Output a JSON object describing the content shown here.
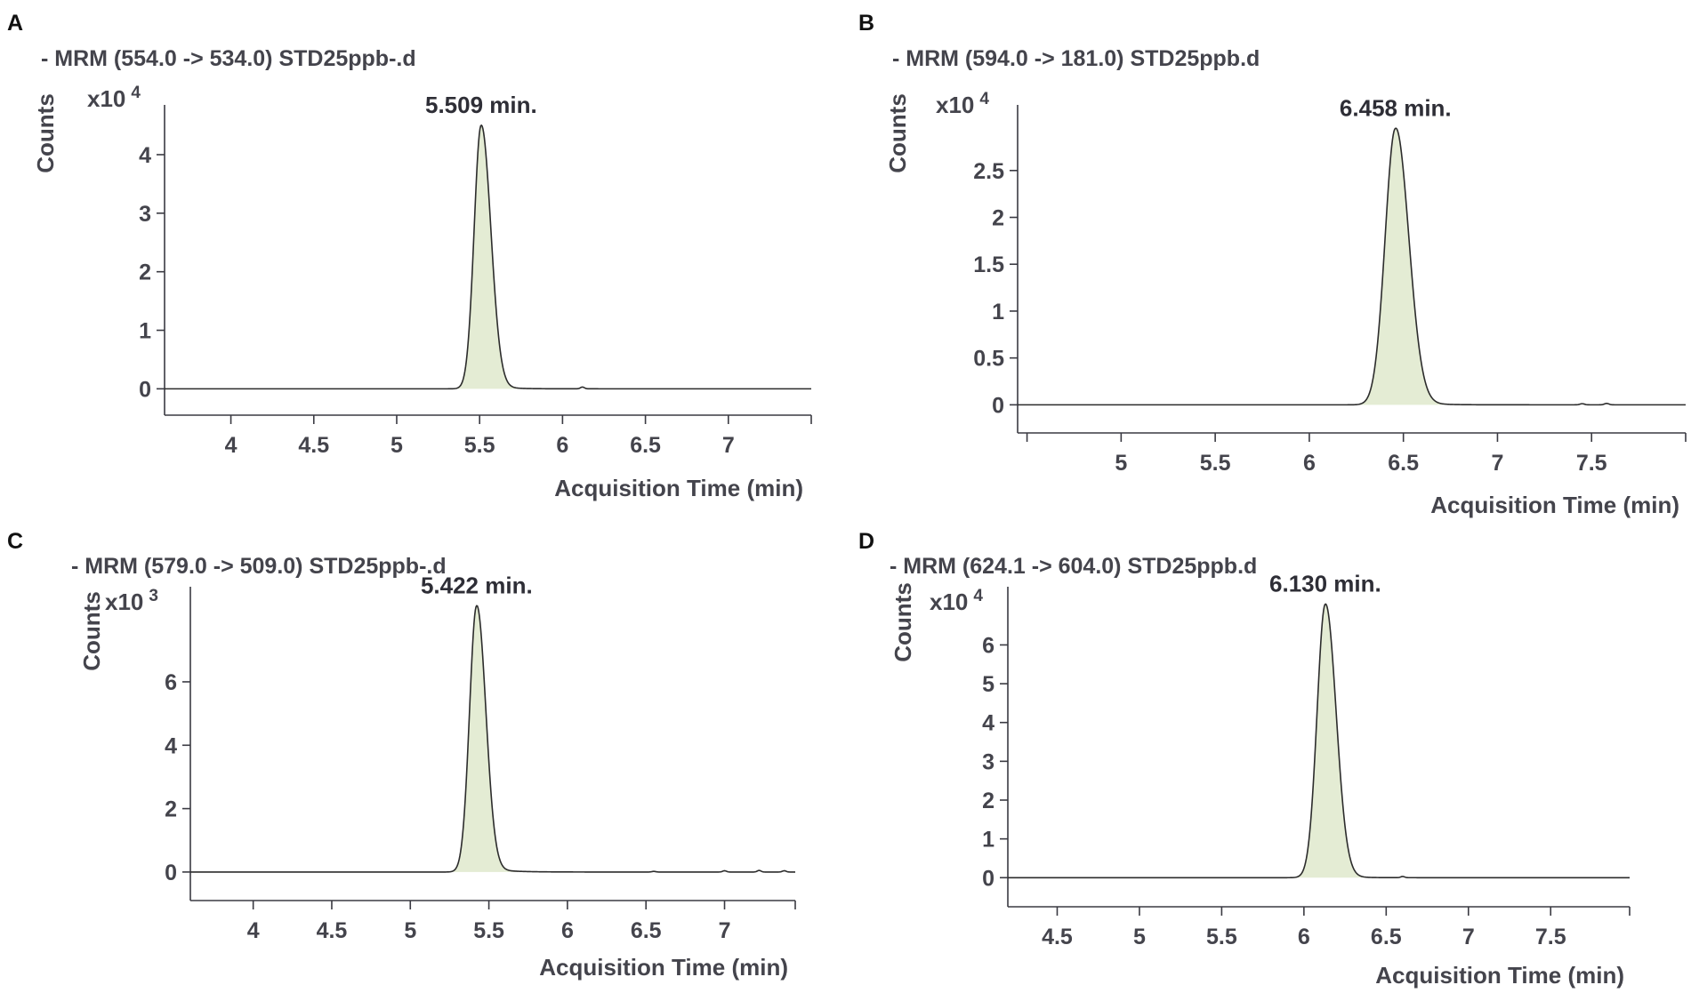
{
  "chart_data": [
    {
      "type": "line",
      "panel_label": "A",
      "title": "- MRM (554.0 -> 534.0) STD25ppb-.d",
      "xlabel": "Acquisition Time (min)",
      "ylabel": "Counts",
      "y_exponent_label": "x10",
      "y_exponent_power": "4",
      "peak_label": "5.509 min.",
      "peak_time": 5.509,
      "peak_height": 4.5,
      "sigma_left": 0.042,
      "sigma_right": 0.058,
      "tail": 0.09,
      "xlim": [
        3.6,
        7.5
      ],
      "ylim": [
        -0.45,
        4.85
      ],
      "x_ticks": [
        4,
        4.5,
        5,
        5.5,
        6,
        6.5,
        7
      ],
      "x_tick_labels": [
        "4",
        "4.5",
        "5",
        "5.5",
        "6",
        "6.5",
        "7"
      ],
      "y_ticks": [
        0,
        1,
        2,
        3,
        4
      ],
      "y_tick_labels": [
        "0",
        "1",
        "2",
        "3",
        "4"
      ],
      "bumps": [
        [
          6.12,
          0.03
        ]
      ]
    },
    {
      "type": "line",
      "panel_label": "B",
      "title": "- MRM (594.0 -> 181.0) STD25ppb.d",
      "xlabel": "Acquisition Time (min)",
      "ylabel": "Counts",
      "y_exponent_label": "x10",
      "y_exponent_power": "4",
      "peak_label": "6.458 min.",
      "peak_time": 6.458,
      "peak_height": 2.95,
      "sigma_left": 0.055,
      "sigma_right": 0.07,
      "tail": 0.1,
      "xlim": [
        4.45,
        8.0
      ],
      "ylim": [
        -0.3,
        3.2
      ],
      "x_ticks": [
        4.5,
        5,
        5.5,
        6,
        6.5,
        7,
        7.5
      ],
      "x_tick_labels": [
        "",
        "5",
        "5.5",
        "6",
        "6.5",
        "7",
        "7.5"
      ],
      "y_ticks": [
        0,
        0.5,
        1,
        1.5,
        2,
        2.5
      ],
      "y_tick_labels": [
        "0",
        "0.5",
        "1",
        "1.5",
        "2",
        "2.5"
      ],
      "bumps": [
        [
          7.45,
          0.012
        ],
        [
          7.58,
          0.015
        ]
      ]
    },
    {
      "type": "line",
      "panel_label": "C",
      "title": "- MRM (579.0 -> 509.0) STD25ppb-.d",
      "xlabel": "Acquisition Time (min)",
      "ylabel": "Counts",
      "y_exponent_label": "x10",
      "y_exponent_power": "3",
      "peak_label": "5.422 min.",
      "peak_time": 5.422,
      "peak_height": 8.4,
      "sigma_left": 0.045,
      "sigma_right": 0.058,
      "tail": 0.12,
      "xlim": [
        3.6,
        7.45
      ],
      "ylim": [
        -0.9,
        9.0
      ],
      "x_ticks": [
        4,
        4.5,
        5,
        5.5,
        6,
        6.5,
        7
      ],
      "x_tick_labels": [
        "4",
        "4.5",
        "5",
        "5.5",
        "6",
        "6.5",
        "7"
      ],
      "y_ticks": [
        0,
        2,
        4,
        6
      ],
      "y_tick_labels": [
        "0",
        "2",
        "4",
        "6"
      ],
      "bumps": [
        [
          6.55,
          0.02
        ],
        [
          7.0,
          0.04
        ],
        [
          7.22,
          0.05
        ],
        [
          7.38,
          0.04
        ]
      ]
    },
    {
      "type": "line",
      "panel_label": "D",
      "title": "- MRM (624.1 -> 604.0) STD25ppb.d",
      "xlabel": "Acquisition Time (min)",
      "ylabel": "Counts",
      "y_exponent_label": "x10",
      "y_exponent_power": "4",
      "peak_label": "6.130 min.",
      "peak_time": 6.13,
      "peak_height": 7.05,
      "sigma_left": 0.05,
      "sigma_right": 0.065,
      "tail": 0.08,
      "xlim": [
        4.2,
        7.98
      ],
      "ylim": [
        -0.75,
        7.5
      ],
      "x_ticks": [
        4.5,
        5,
        5.5,
        6,
        6.5,
        7,
        7.5
      ],
      "x_tick_labels": [
        "4.5",
        "5",
        "5.5",
        "6",
        "6.5",
        "7",
        "7.5"
      ],
      "y_ticks": [
        0,
        1,
        2,
        3,
        4,
        5,
        6
      ],
      "y_tick_labels": [
        "0",
        "1",
        "2",
        "3",
        "4",
        "5",
        "6"
      ],
      "bumps": [
        [
          6.6,
          0.03
        ]
      ]
    }
  ]
}
